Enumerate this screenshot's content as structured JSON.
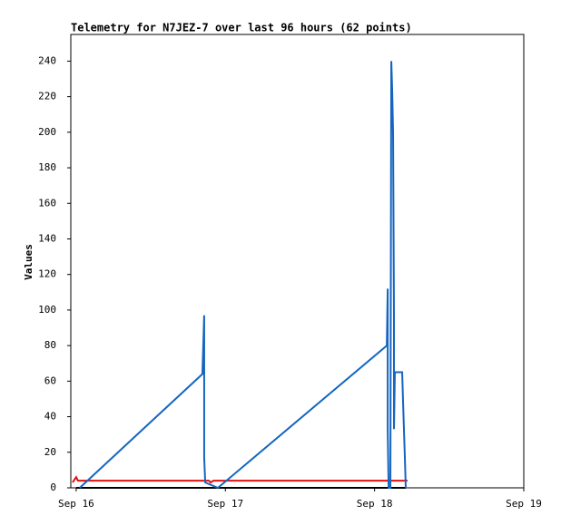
{
  "chart_data": {
    "type": "line",
    "title": "Telemetry for N7JEZ-7 over last 96 hours (62 points)",
    "y_label": "Values",
    "xlim": [
      -0.036,
      3
    ],
    "xticks": [
      {
        "value": 0,
        "label": "Sep 16"
      },
      {
        "value": 1,
        "label": "Sep 17"
      },
      {
        "value": 2,
        "label": "Sep 18"
      },
      {
        "value": 3,
        "label": "Sep 19"
      }
    ],
    "ylim": [
      0,
      255
    ],
    "yticks": [
      0,
      20,
      40,
      60,
      80,
      100,
      120,
      140,
      160,
      180,
      200,
      220,
      240
    ],
    "grid": false,
    "series": [
      {
        "color": "#1565c0",
        "x": [
          0.024,
          0.846,
          0.858,
          0.858,
          0.865,
          0.95,
          2.082,
          2.088,
          2.088,
          2.094,
          2.106,
          2.112,
          2.118,
          2.124,
          2.13,
          2.13,
          2.136,
          2.185,
          2.191,
          2.203,
          2.209
        ],
        "values": [
          0,
          64,
          97,
          17,
          3,
          0,
          80,
          112,
          33,
          0,
          0,
          240,
          224,
          200,
          97,
          33,
          65,
          65,
          48,
          17,
          0
        ]
      },
      {
        "color": "#e01010",
        "x": [
          -0.024,
          0,
          0.012,
          0.89,
          0.9,
          0.92,
          2.221
        ],
        "values": [
          3,
          6,
          4,
          4,
          3,
          4,
          4
        ]
      },
      {
        "color": "#000000",
        "x": [
          0,
          2.209
        ],
        "values": [
          0,
          0
        ]
      }
    ]
  }
}
